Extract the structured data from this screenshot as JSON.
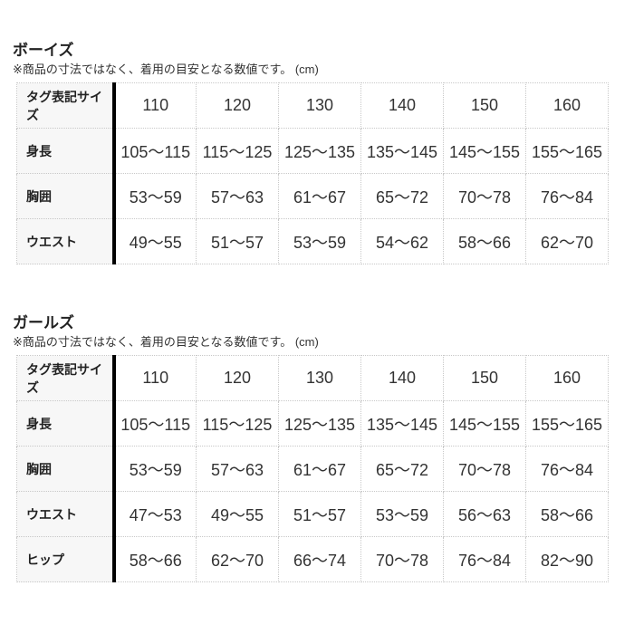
{
  "colors": {
    "label_column_bg": "#f7f7f7",
    "divider_bar": "#000000",
    "cell_border": "#c8c8c8",
    "text": "#333333"
  },
  "sections": [
    {
      "title": "ボーイズ",
      "note": "※商品の寸法ではなく、着用の目安となる数値です。 (cm)",
      "table": {
        "header_label": "タグ表記サイズ",
        "columns": [
          "110",
          "120",
          "130",
          "140",
          "150",
          "160"
        ],
        "rows": [
          {
            "label": "身長",
            "values": [
              "105～115",
              "115～125",
              "125～135",
              "135～145",
              "145～155",
              "155～165"
            ]
          },
          {
            "label": "胸囲",
            "values": [
              "53～59",
              "57～63",
              "61～67",
              "65～72",
              "70～78",
              "76～84"
            ]
          },
          {
            "label": "ウエスト",
            "values": [
              "49～55",
              "51～57",
              "53～59",
              "54～62",
              "58～66",
              "62～70"
            ]
          }
        ]
      }
    },
    {
      "title": "ガールズ",
      "note": "※商品の寸法ではなく、着用の目安となる数値です。 (cm)",
      "table": {
        "header_label": "タグ表記サイズ",
        "columns": [
          "110",
          "120",
          "130",
          "140",
          "150",
          "160"
        ],
        "rows": [
          {
            "label": "身長",
            "values": [
              "105～115",
              "115～125",
              "125～135",
              "135～145",
              "145～155",
              "155～165"
            ]
          },
          {
            "label": "胸囲",
            "values": [
              "53～59",
              "57～63",
              "61～67",
              "65～72",
              "70～78",
              "76～84"
            ]
          },
          {
            "label": "ウエスト",
            "values": [
              "47～53",
              "49～55",
              "51～57",
              "53～59",
              "56～63",
              "58～66"
            ]
          },
          {
            "label": "ヒップ",
            "values": [
              "58～66",
              "62～70",
              "66～74",
              "70～78",
              "76～84",
              "82～90"
            ]
          }
        ]
      }
    }
  ]
}
